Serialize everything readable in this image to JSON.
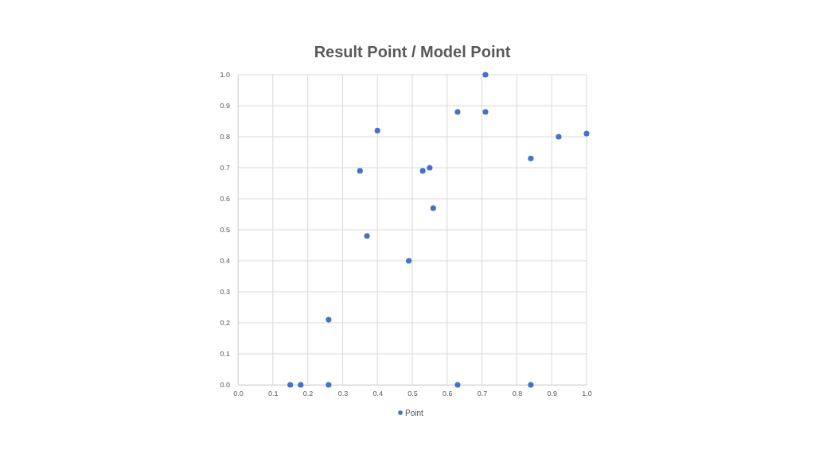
{
  "chart_data": {
    "type": "scatter",
    "title": "Result Point / Model Point",
    "x": [
      0.15,
      0.18,
      0.26,
      0.26,
      0.35,
      0.37,
      0.4,
      0.49,
      0.53,
      0.55,
      0.56,
      0.63,
      0.63,
      0.71,
      0.71,
      0.84,
      0.84,
      0.92,
      1.0
    ],
    "series": [
      {
        "name": "Point",
        "color": "#4472c4",
        "values": [
          0,
          0,
          0,
          0.21,
          0.69,
          0.48,
          0.82,
          0.4,
          0.69,
          0.7,
          0.57,
          0.88,
          0,
          1.0,
          0.88,
          0.73,
          0,
          0.8,
          0.81
        ]
      }
    ],
    "xlim": [
      0,
      1
    ],
    "ylim": [
      0,
      1
    ],
    "xticks": [
      {
        "value": 0,
        "label": "0.0"
      },
      {
        "value": 0.1,
        "label": "0.1"
      },
      {
        "value": 0.2,
        "label": "0.2"
      },
      {
        "value": 0.3,
        "label": "0.3"
      },
      {
        "value": 0.4,
        "label": "0.4"
      },
      {
        "value": 0.5,
        "label": "0.5"
      },
      {
        "value": 0.6,
        "label": "0.6"
      },
      {
        "value": 0.7,
        "label": "0.7"
      },
      {
        "value": 0.8,
        "label": "0.8"
      },
      {
        "value": 0.9,
        "label": "0.9"
      },
      {
        "value": 1,
        "label": "1.0"
      }
    ],
    "yticks": [
      {
        "value": 0,
        "label": "0.0"
      },
      {
        "value": 0.1,
        "label": "0.1"
      },
      {
        "value": 0.2,
        "label": "0.2"
      },
      {
        "value": 0.3,
        "label": "0.3"
      },
      {
        "value": 0.4,
        "label": "0.4"
      },
      {
        "value": 0.5,
        "label": "0.5"
      },
      {
        "value": 0.6,
        "label": "0.6"
      },
      {
        "value": 0.7,
        "label": "0.7"
      },
      {
        "value": 0.8,
        "label": "0.8"
      },
      {
        "value": 0.9,
        "label": "0.9"
      },
      {
        "value": 1,
        "label": "1.0"
      }
    ],
    "grid": true,
    "legend": "bottom",
    "marker": "circle"
  }
}
